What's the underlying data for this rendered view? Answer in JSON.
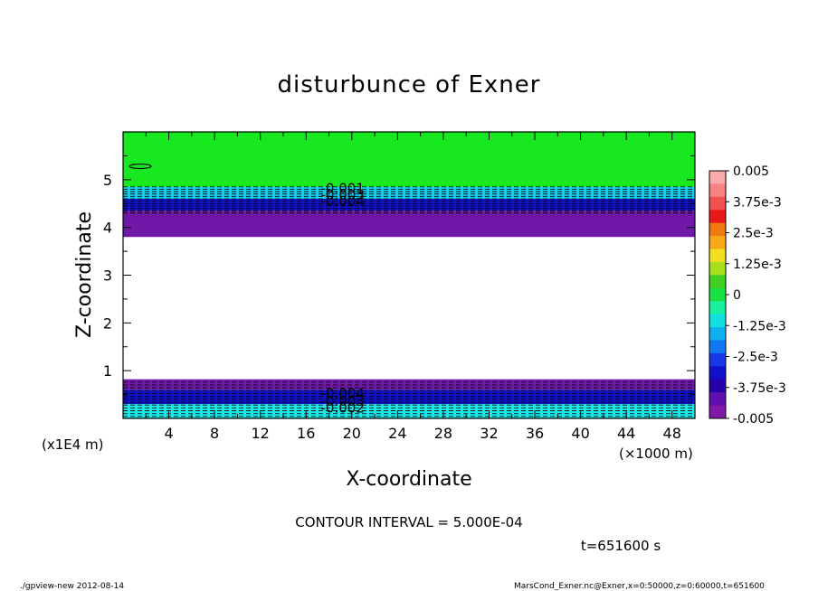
{
  "chart_data": {
    "type": "heatmap",
    "title": "disturbunce of Exner",
    "xlabel": "X-coordinate",
    "ylabel": "Z-coordinate",
    "x_unit": "(×1000 m)",
    "y_unit": "(x1E4 m)",
    "xlim": [
      0,
      50
    ],
    "ylim": [
      0,
      6
    ],
    "x_ticks": [
      "4",
      "8",
      "12",
      "16",
      "20",
      "24",
      "28",
      "32",
      "36",
      "40",
      "44",
      "48"
    ],
    "y_ticks": [
      "1",
      "2",
      "3",
      "4",
      "5"
    ],
    "colorbar": {
      "labels": [
        "0.005",
        "3.75e-3",
        "2.5e-3",
        "1.25e-3",
        "0",
        "-1.25e-3",
        "-2.5e-3",
        "-3.75e-3",
        "-0.005"
      ],
      "range": [
        -0.005,
        0.005
      ],
      "colors": [
        "#f9aaaa",
        "#f88282",
        "#f05050",
        "#e81818",
        "#f07810",
        "#f8a818",
        "#f0e020",
        "#a8e020",
        "#40d020",
        "#18e040",
        "#18f0a0",
        "#10e0e0",
        "#10b0f0",
        "#1078f0",
        "#1838e8",
        "#1010c8",
        "#2800a8",
        "#6010b0",
        "#8018a8"
      ]
    },
    "bands": [
      {
        "z_from": 4.85,
        "z_to": 6.0,
        "level": 0.0,
        "color": "#18e820"
      },
      {
        "z_from": 4.6,
        "z_to": 4.85,
        "level": -0.002,
        "color": "#10d0f0"
      },
      {
        "z_from": 4.35,
        "z_to": 4.6,
        "level": -0.004,
        "color": "#1010c8"
      },
      {
        "z_from": 3.8,
        "z_to": 4.35,
        "level": -0.005,
        "color": "#7018a8"
      },
      {
        "z_from": 0.6,
        "z_to": 0.82,
        "level": -0.005,
        "color": "#7018a8"
      },
      {
        "z_from": 0.3,
        "z_to": 0.6,
        "level": -0.004,
        "color": "#1010c8"
      },
      {
        "z_from": 0.0,
        "z_to": 0.3,
        "level": -0.002,
        "color": "#18e8e8"
      }
    ],
    "contour_labels": [
      {
        "text": "-0.001",
        "x": 19.2,
        "z": 4.82
      },
      {
        "text": "-0.003",
        "x": 19.2,
        "z": 4.68
      },
      {
        "text": "-0.004",
        "x": 19.2,
        "z": 4.55
      },
      {
        "text": "-0.004",
        "x": 19.2,
        "z": 0.52
      },
      {
        "text": "-0.003",
        "x": 19.2,
        "z": 0.36
      },
      {
        "text": "-0.002",
        "x": 19.2,
        "z": 0.22
      }
    ],
    "contour_interval": "CONTOUR INTERVAL = 5.000E-04"
  },
  "time_label": "t=651600 s",
  "footer_left": "./gpview-new  2012-08-14",
  "footer_right": "MarsCond_Exner.nc@Exner,x=0:50000,z=0:60000,t=651600"
}
